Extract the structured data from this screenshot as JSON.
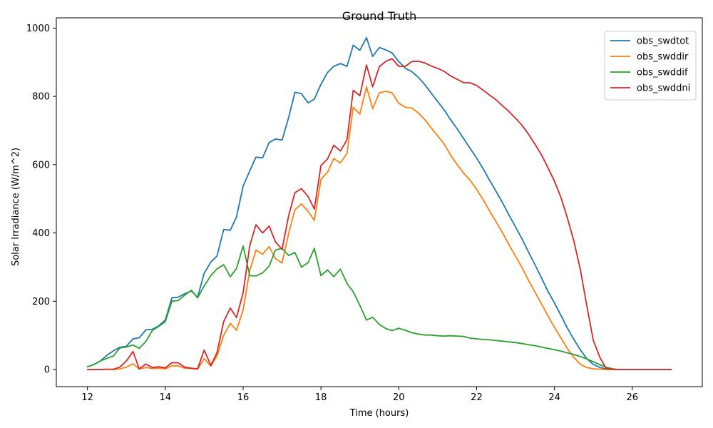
{
  "chart_data": {
    "type": "line",
    "title": "Ground Truth",
    "xlabel": "Time (hours)",
    "ylabel": "Solar Irradiance (W/m^2)",
    "xlim": [
      11.2,
      27.8
    ],
    "ylim": [
      -50,
      1030
    ],
    "xticks": [
      12,
      14,
      16,
      18,
      20,
      22,
      24,
      26
    ],
    "yticks": [
      0,
      200,
      400,
      600,
      800,
      1000
    ],
    "grid": false,
    "legend_position": "top-right",
    "series": [
      {
        "name": "obs_swdtot",
        "color": "#1f77b4",
        "x": [
          12.0,
          12.17,
          12.33,
          12.5,
          12.67,
          12.83,
          13.0,
          13.17,
          13.33,
          13.5,
          13.67,
          13.83,
          14.0,
          14.17,
          14.33,
          14.5,
          14.67,
          14.83,
          15.0,
          15.17,
          15.33,
          15.5,
          15.67,
          15.83,
          16.0,
          16.17,
          16.33,
          16.5,
          16.67,
          16.83,
          17.0,
          17.17,
          17.33,
          17.5,
          17.67,
          17.83,
          18.0,
          18.17,
          18.33,
          18.5,
          18.67,
          18.83,
          19.0,
          19.17,
          19.33,
          19.5,
          19.67,
          19.83,
          20.0,
          20.17,
          20.33,
          20.5,
          20.67,
          20.83,
          21.0,
          21.17,
          21.33,
          21.5,
          21.67,
          21.83,
          22.0,
          22.17,
          22.33,
          22.5,
          22.67,
          22.83,
          23.0,
          23.17,
          23.33,
          23.5,
          23.67,
          23.83,
          24.0,
          24.17,
          24.33,
          24.5,
          24.67,
          24.83,
          25.0,
          25.17,
          25.33,
          25.5,
          25.67,
          25.83,
          26.0,
          26.17,
          26.33,
          26.5,
          26.67,
          26.83,
          27.0
        ],
        "y": [
          8,
          15,
          25,
          42,
          55,
          65,
          68,
          90,
          93,
          116,
          118,
          128,
          145,
          210,
          212,
          222,
          230,
          212,
          282,
          315,
          333,
          410,
          408,
          447,
          537,
          582,
          622,
          620,
          665,
          675,
          672,
          738,
          812,
          808,
          781,
          792,
          835,
          870,
          888,
          896,
          888,
          950,
          935,
          972,
          917,
          943,
          936,
          927,
          902,
          882,
          873,
          856,
          834,
          810,
          785,
          760,
          732,
          705,
          676,
          648,
          620,
          588,
          555,
          522,
          488,
          453,
          418,
          382,
          345,
          307,
          268,
          230,
          195,
          158,
          122,
          88,
          57,
          32,
          15,
          6,
          2,
          1,
          0,
          0,
          0,
          0,
          0,
          0,
          0,
          0,
          0
        ]
      },
      {
        "name": "obs_swddir",
        "color": "#ff7f0e",
        "x": [
          12.0,
          12.17,
          12.33,
          12.5,
          12.67,
          12.83,
          13.0,
          13.17,
          13.33,
          13.5,
          13.67,
          13.83,
          14.0,
          14.17,
          14.33,
          14.5,
          14.67,
          14.83,
          15.0,
          15.17,
          15.33,
          15.5,
          15.67,
          15.83,
          16.0,
          16.17,
          16.33,
          16.5,
          16.67,
          16.83,
          17.0,
          17.17,
          17.33,
          17.5,
          17.67,
          17.83,
          18.0,
          18.17,
          18.33,
          18.5,
          18.67,
          18.83,
          19.0,
          19.17,
          19.33,
          19.5,
          19.67,
          19.83,
          20.0,
          20.17,
          20.33,
          20.5,
          20.67,
          20.83,
          21.0,
          21.17,
          21.33,
          21.5,
          21.67,
          21.83,
          22.0,
          22.17,
          22.33,
          22.5,
          22.67,
          22.83,
          23.0,
          23.17,
          23.33,
          23.5,
          23.67,
          23.83,
          24.0,
          24.17,
          24.33,
          24.5,
          24.67,
          24.83,
          25.0,
          25.17,
          25.33,
          25.5,
          25.67,
          25.83,
          26.0,
          26.17,
          26.33,
          26.5,
          26.67,
          26.83,
          27.0
        ],
        "y": [
          0,
          0,
          0,
          1,
          0,
          2,
          7,
          17,
          2,
          6,
          3,
          4,
          2,
          11,
          11,
          4,
          3,
          1,
          32,
          10,
          40,
          100,
          135,
          115,
          175,
          290,
          350,
          338,
          360,
          325,
          312,
          398,
          468,
          485,
          463,
          437,
          557,
          578,
          618,
          605,
          633,
          768,
          748,
          828,
          764,
          810,
          815,
          810,
          780,
          768,
          766,
          752,
          732,
          708,
          684,
          660,
          628,
          600,
          575,
          555,
          528,
          497,
          465,
          433,
          400,
          366,
          332,
          298,
          262,
          227,
          192,
          158,
          124,
          92,
          62,
          35,
          15,
          6,
          2,
          1,
          0,
          0,
          0,
          0,
          0,
          0,
          0,
          0,
          0,
          0,
          0
        ]
      },
      {
        "name": "obs_swddif",
        "color": "#2ca02c",
        "x": [
          12.0,
          12.17,
          12.33,
          12.5,
          12.67,
          12.83,
          13.0,
          13.17,
          13.33,
          13.5,
          13.67,
          13.83,
          14.0,
          14.17,
          14.33,
          14.5,
          14.67,
          14.83,
          15.0,
          15.17,
          15.33,
          15.5,
          15.67,
          15.83,
          16.0,
          16.17,
          16.33,
          16.5,
          16.67,
          16.83,
          17.0,
          17.17,
          17.33,
          17.5,
          17.67,
          17.83,
          18.0,
          18.17,
          18.33,
          18.5,
          18.67,
          18.83,
          19.0,
          19.17,
          19.33,
          19.5,
          19.67,
          19.83,
          20.0,
          20.17,
          20.33,
          20.5,
          20.67,
          20.83,
          21.0,
          21.17,
          21.33,
          21.5,
          21.67,
          21.83,
          22.0,
          22.17,
          22.33,
          22.5,
          22.67,
          22.83,
          23.0,
          23.17,
          23.33,
          23.5,
          23.67,
          23.83,
          24.0,
          24.17,
          24.33,
          24.5,
          24.67,
          24.83,
          25.0,
          25.17,
          25.33,
          25.5,
          25.67,
          25.83,
          26.0,
          26.17,
          26.33,
          26.5,
          26.67,
          26.83,
          27.0
        ],
        "y": [
          8,
          15,
          25,
          33,
          40,
          63,
          66,
          72,
          62,
          82,
          115,
          126,
          140,
          200,
          202,
          218,
          232,
          210,
          245,
          275,
          295,
          307,
          272,
          296,
          362,
          275,
          274,
          283,
          303,
          350,
          355,
          334,
          343,
          300,
          313,
          355,
          275,
          292,
          272,
          294,
          252,
          228,
          188,
          145,
          153,
          132,
          120,
          114,
          121,
          115,
          108,
          104,
          101,
          101,
          99,
          98,
          99,
          98,
          97,
          92,
          90,
          88,
          87,
          85,
          83,
          81,
          79,
          76,
          73,
          70,
          66,
          62,
          58,
          54,
          49,
          44,
          38,
          31,
          23,
          14,
          7,
          2,
          0,
          0,
          0,
          0,
          0,
          0,
          0,
          0,
          0
        ]
      },
      {
        "name": "obs_swddni",
        "color": "#d62728",
        "x": [
          12.0,
          12.17,
          12.33,
          12.5,
          12.67,
          12.83,
          13.0,
          13.17,
          13.33,
          13.5,
          13.67,
          13.83,
          14.0,
          14.17,
          14.33,
          14.5,
          14.67,
          14.83,
          15.0,
          15.17,
          15.33,
          15.5,
          15.67,
          15.83,
          16.0,
          16.17,
          16.33,
          16.5,
          16.67,
          16.83,
          17.0,
          17.17,
          17.33,
          17.5,
          17.67,
          17.83,
          18.0,
          18.17,
          18.33,
          18.5,
          18.67,
          18.83,
          19.0,
          19.17,
          19.33,
          19.5,
          19.67,
          19.83,
          20.0,
          20.17,
          20.33,
          20.5,
          20.67,
          20.83,
          21.0,
          21.17,
          21.33,
          21.5,
          21.67,
          21.83,
          22.0,
          22.17,
          22.33,
          22.5,
          22.67,
          22.83,
          23.0,
          23.17,
          23.33,
          23.5,
          23.67,
          23.83,
          24.0,
          24.17,
          24.33,
          24.5,
          24.67,
          24.83,
          25.0,
          25.17,
          25.33,
          25.5,
          25.67,
          25.83,
          26.0,
          26.17,
          26.33,
          26.5,
          26.67,
          26.83,
          27.0
        ],
        "y": [
          0,
          0,
          0,
          1,
          1,
          7,
          25,
          53,
          2,
          16,
          6,
          8,
          5,
          20,
          20,
          7,
          4,
          2,
          57,
          12,
          50,
          140,
          180,
          152,
          225,
          363,
          424,
          400,
          420,
          374,
          352,
          450,
          518,
          530,
          507,
          470,
          597,
          617,
          657,
          640,
          673,
          818,
          802,
          892,
          828,
          887,
          903,
          910,
          888,
          888,
          902,
          903,
          898,
          889,
          882,
          873,
          860,
          850,
          840,
          840,
          832,
          818,
          804,
          790,
          772,
          756,
          736,
          715,
          690,
          660,
          628,
          592,
          552,
          503,
          445,
          376,
          290,
          188,
          85,
          35,
          3,
          1,
          0,
          0,
          0,
          0,
          0,
          0,
          0,
          0,
          0
        ]
      }
    ]
  }
}
